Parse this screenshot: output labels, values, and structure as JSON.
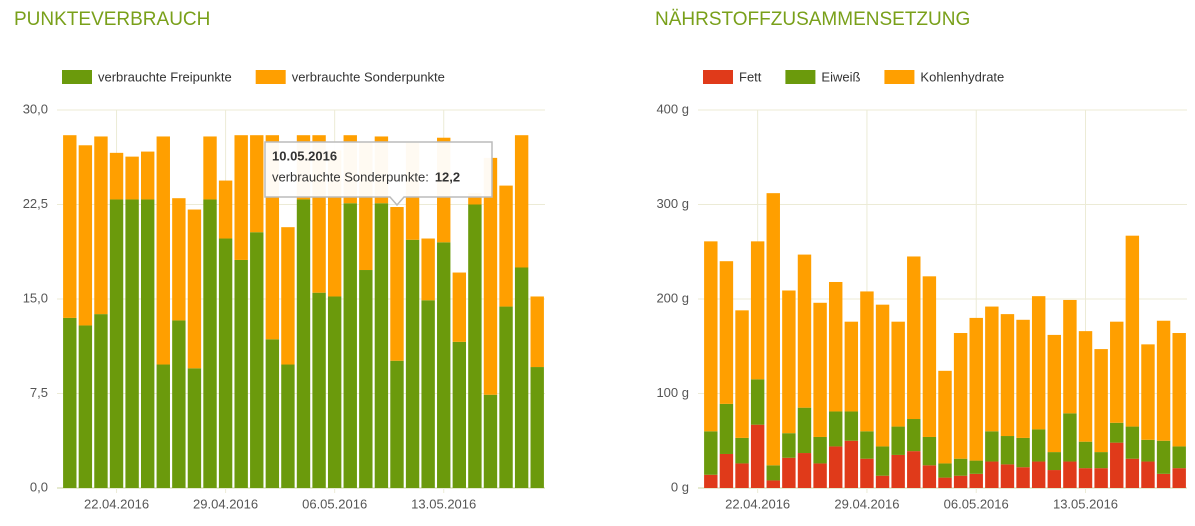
{
  "chart_data": [
    {
      "type": "stacked-bar",
      "title": "PUNKTEVERBRAUCH",
      "categories": [
        null,
        null,
        null,
        "22.04.2016",
        null,
        null,
        null,
        null,
        null,
        null,
        "29.04.2016",
        null,
        null,
        null,
        null,
        null,
        null,
        "06.05.2016",
        null,
        null,
        null,
        null,
        null,
        null,
        "13.05.2016",
        null,
        null,
        null,
        null,
        null,
        null
      ],
      "series": [
        {
          "name": "verbrauchte Freipunkte",
          "color": "#6b9a0c",
          "values": [
            13.5,
            12.9,
            13.8,
            22.9,
            22.9,
            22.9,
            9.8,
            13.3,
            9.5,
            22.9,
            19.8,
            18.1,
            20.3,
            11.8,
            9.8,
            22.9,
            15.5,
            15.2,
            22.6,
            17.3,
            22.6,
            10.1,
            19.7,
            14.9,
            19.5,
            11.6,
            22.5,
            7.4,
            14.4,
            17.5,
            9.6
          ]
        },
        {
          "name": "verbrauchte Sonderpunkte",
          "color": "#ff9f00",
          "values": [
            14.5,
            14.3,
            14.1,
            3.7,
            3.4,
            3.8,
            18.1,
            9.7,
            12.6,
            5.0,
            4.6,
            9.9,
            7.7,
            16.2,
            10.9,
            5.1,
            12.5,
            11.6,
            5.4,
            10.2,
            5.3,
            12.2,
            7.7,
            4.9,
            8.3,
            5.5,
            0.9,
            18.8,
            9.6,
            10.5,
            5.6
          ]
        }
      ],
      "ylim": [
        0,
        30
      ],
      "yticks": [
        {
          "value": 0,
          "label": "0,0"
        },
        {
          "value": 7.5,
          "label": "7,5"
        },
        {
          "value": 15,
          "label": "15,0"
        },
        {
          "value": 22.5,
          "label": "22,5"
        },
        {
          "value": 30,
          "label": "30,0"
        }
      ],
      "grid": true,
      "tooltip": {
        "title": "10.05.2016",
        "text": "verbrauchte Sonderpunkte:",
        "value": "12,2"
      }
    },
    {
      "type": "stacked-bar",
      "title": "NÄHRSTOFFZUSAMMENSETZUNG",
      "categories": [
        null,
        null,
        null,
        "22.04.2016",
        null,
        null,
        null,
        null,
        null,
        null,
        "29.04.2016",
        null,
        null,
        null,
        null,
        null,
        null,
        "06.05.2016",
        null,
        null,
        null,
        null,
        null,
        null,
        "13.05.2016",
        null,
        null,
        null,
        null,
        null,
        null
      ],
      "series": [
        {
          "name": "Fett",
          "color": "#e03a1a",
          "values": [
            14,
            36,
            26,
            67,
            8,
            32,
            37,
            26,
            44,
            50,
            31,
            13,
            35,
            39,
            24,
            11,
            13,
            15,
            28,
            25,
            22,
            28,
            19,
            28,
            21,
            21,
            48,
            31,
            28,
            15,
            21
          ]
        },
        {
          "name": "Eiweiß",
          "color": "#6b9a0c",
          "values": [
            46,
            53,
            27,
            48,
            16,
            26,
            48,
            28,
            37,
            31,
            29,
            31,
            30,
            34,
            30,
            15,
            18,
            14,
            32,
            30,
            31,
            34,
            19,
            51,
            28,
            17,
            21,
            34,
            23,
            35,
            23
          ]
        },
        {
          "name": "Kohlenhydrate",
          "color": "#ff9f00",
          "values": [
            201,
            151,
            135,
            146,
            288,
            151,
            162,
            142,
            137,
            95,
            148,
            150,
            111,
            172,
            170,
            98,
            133,
            151,
            132,
            129,
            125,
            141,
            124,
            120,
            117,
            109,
            107,
            202,
            101,
            127,
            120
          ]
        }
      ],
      "ylim": [
        0,
        400
      ],
      "yticks": [
        {
          "value": 0,
          "label": "0 g"
        },
        {
          "value": 100,
          "label": "100 g"
        },
        {
          "value": 200,
          "label": "200 g"
        },
        {
          "value": 300,
          "label": "300 g"
        },
        {
          "value": 400,
          "label": "400 g"
        }
      ],
      "grid": true
    }
  ]
}
